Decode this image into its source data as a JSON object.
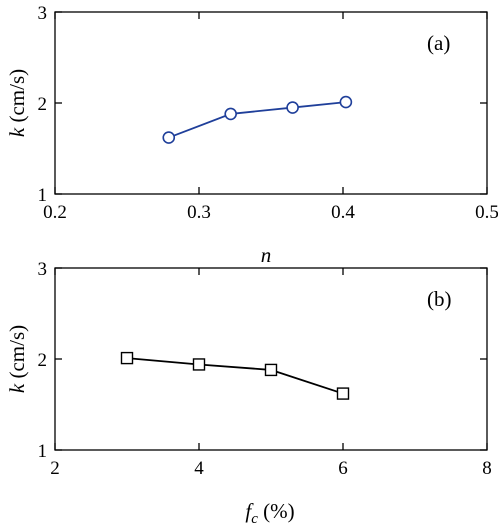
{
  "chart_data": [
    {
      "type": "line",
      "panel_label": "(a)",
      "xlabel": "n",
      "ylabel_var": "k",
      "ylabel_unit": " (cm/s)",
      "xlim": [
        0.2,
        0.5
      ],
      "ylim": [
        1,
        3
      ],
      "xticks": [
        0.2,
        0.3,
        0.4,
        0.5
      ],
      "xtick_labels": [
        "0.2",
        "0.3",
        "0.4",
        "0.5"
      ],
      "yticks": [
        1,
        2,
        3
      ],
      "ytick_labels": [
        "1",
        "2",
        "3"
      ],
      "grid": false,
      "series": [
        {
          "marker": "circle",
          "color": "#1f3f9a",
          "x": [
            0.279,
            0.322,
            0.365,
            0.402
          ],
          "y": [
            1.62,
            1.88,
            1.95,
            2.01
          ]
        }
      ]
    },
    {
      "type": "line",
      "panel_label": "(b)",
      "xlabel_var": "f",
      "xlabel_sub": "c",
      "xlabel_unit": " (%)",
      "ylabel_var": "k",
      "ylabel_unit": " (cm/s)",
      "xlim": [
        2,
        8
      ],
      "ylim": [
        1,
        3
      ],
      "xticks": [
        2,
        4,
        6,
        8
      ],
      "xtick_labels": [
        "2",
        "4",
        "6",
        "8"
      ],
      "yticks": [
        1,
        2,
        3
      ],
      "ytick_labels": [
        "1",
        "2",
        "3"
      ],
      "grid": false,
      "series": [
        {
          "marker": "square",
          "color": "#000000",
          "x": [
            3,
            4,
            5,
            6
          ],
          "y": [
            2.01,
            1.94,
            1.88,
            1.62
          ]
        }
      ]
    }
  ]
}
